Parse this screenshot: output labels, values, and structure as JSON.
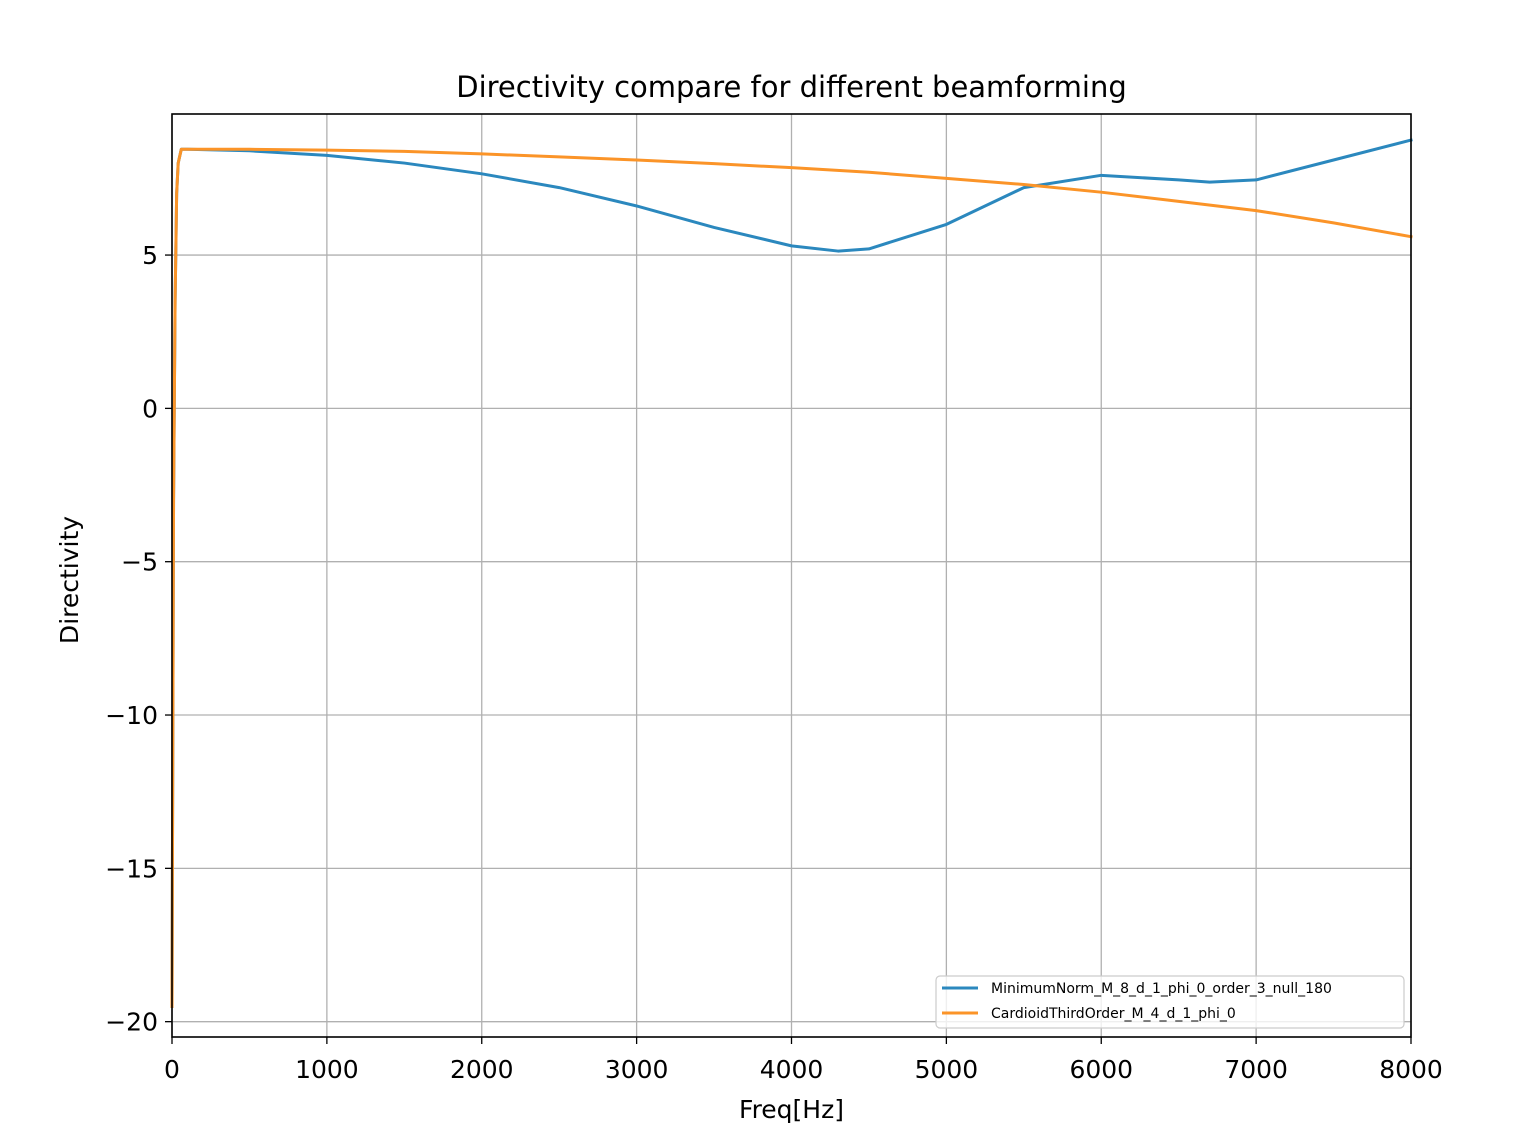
{
  "chart_data": {
    "type": "line",
    "title": "Directivity compare for different beamforming",
    "xlabel": "Freq[Hz]",
    "ylabel": "Directivity",
    "xlim": [
      0,
      8000
    ],
    "ylim": [
      -20.5,
      9.6
    ],
    "xticks": [
      0,
      1000,
      2000,
      3000,
      4000,
      5000,
      6000,
      7000,
      8000
    ],
    "xtick_labels": [
      "0",
      "1000",
      "2000",
      "3000",
      "4000",
      "5000",
      "6000",
      "7000",
      "8000"
    ],
    "yticks": [
      5,
      0,
      -5,
      -10,
      -15,
      -20
    ],
    "ytick_labels": [
      "5",
      "0",
      "−5",
      "−10",
      "−15",
      "−20"
    ],
    "grid": true,
    "legend_position": "lower-right",
    "series": [
      {
        "name": "MinimumNorm_M_8_d_1_phi_0_order_3_null_180",
        "color": "#2b88be",
        "x": [
          0,
          10,
          20,
          30,
          40,
          60,
          100,
          500,
          1000,
          1500,
          2000,
          2500,
          3000,
          3500,
          4000,
          4300,
          4500,
          5000,
          5500,
          6000,
          6500,
          6700,
          7000,
          7500,
          8000
        ],
        "y": [
          -19.5,
          -3.0,
          3.5,
          7.0,
          8.0,
          8.45,
          8.45,
          8.4,
          8.25,
          8.0,
          7.65,
          7.2,
          6.6,
          5.9,
          5.3,
          5.13,
          5.2,
          6.0,
          7.2,
          7.6,
          7.45,
          7.38,
          7.45,
          8.1,
          8.75
        ]
      },
      {
        "name": "CardioidThirdOrder_M_4_d_1_phi_0",
        "color": "#fb9428",
        "x": [
          0,
          10,
          20,
          30,
          40,
          60,
          100,
          500,
          1000,
          1500,
          2000,
          2500,
          3000,
          3500,
          4000,
          4500,
          5000,
          5500,
          6000,
          6500,
          7000,
          7500,
          8000
        ],
        "y": [
          -19.5,
          -3.0,
          3.5,
          7.0,
          8.0,
          8.45,
          8.45,
          8.45,
          8.42,
          8.38,
          8.3,
          8.2,
          8.1,
          7.98,
          7.85,
          7.7,
          7.5,
          7.3,
          7.05,
          6.75,
          6.45,
          6.05,
          5.6
        ]
      }
    ]
  }
}
